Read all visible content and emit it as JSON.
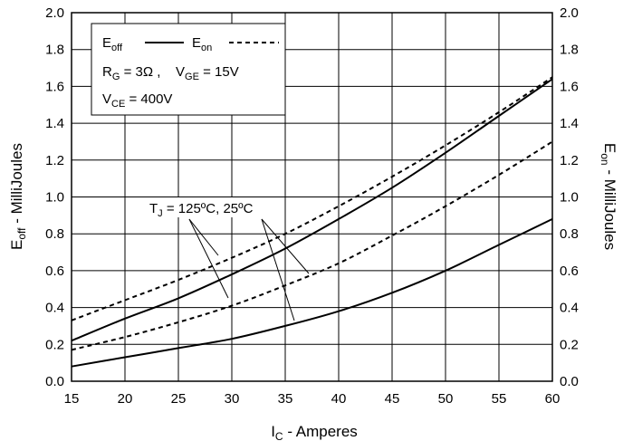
{
  "chart_data": {
    "type": "line",
    "xlabel": {
      "main": "I",
      "sub": "C",
      "rest": " - Amperes"
    },
    "ylabel_left": {
      "main": "E",
      "sub": "off",
      "rest": " - MilliJoules"
    },
    "ylabel_right": {
      "main": "E",
      "sub": "on",
      "rest": " - MilliJoules"
    },
    "xlim": [
      15,
      60
    ],
    "ylim": [
      0,
      2
    ],
    "xticks": [
      "15",
      "20",
      "25",
      "30",
      "35",
      "40",
      "45",
      "50",
      "55",
      "60"
    ],
    "yticks": [
      "0.0",
      "0.2",
      "0.4",
      "0.6",
      "0.8",
      "1.0",
      "1.2",
      "1.4",
      "1.6",
      "1.8",
      "2.0"
    ],
    "grid": true,
    "legend": {
      "placement": "top-left",
      "eoff": {
        "main": "E",
        "sub": "off"
      },
      "eon": {
        "main": "E",
        "sub": "on"
      },
      "rg": {
        "main": "R",
        "sub": "G",
        "rest": " = 3Ω ,"
      },
      "vge": {
        "main": "V",
        "sub": "GE",
        "rest": " = 15V"
      },
      "vce": {
        "main": "V",
        "sub": "CE",
        "rest": " = 400V"
      }
    },
    "annotation": {
      "main": "T",
      "sub": "J",
      "rest": " = 125ºC, 25ºC"
    },
    "series": [
      {
        "quantity": "Eon",
        "tj": "125ºC",
        "style": "dashed",
        "x": [
          15,
          20,
          25,
          30,
          35,
          40,
          45,
          50,
          55,
          60
        ],
        "y": [
          0.33,
          0.44,
          0.55,
          0.67,
          0.8,
          0.95,
          1.11,
          1.28,
          1.46,
          1.65
        ]
      },
      {
        "quantity": "Eoff",
        "tj": "125ºC",
        "style": "solid",
        "x": [
          15,
          20,
          25,
          30,
          35,
          40,
          45,
          50,
          55,
          60
        ],
        "y": [
          0.22,
          0.34,
          0.45,
          0.58,
          0.72,
          0.88,
          1.05,
          1.24,
          1.44,
          1.64
        ]
      },
      {
        "quantity": "Eon",
        "tj": "25ºC",
        "style": "dashed",
        "x": [
          15,
          20,
          25,
          30,
          35,
          40,
          45,
          50,
          55,
          60
        ],
        "y": [
          0.17,
          0.24,
          0.32,
          0.41,
          0.52,
          0.64,
          0.79,
          0.95,
          1.12,
          1.3
        ]
      },
      {
        "quantity": "Eoff",
        "tj": "25ºC",
        "style": "solid",
        "x": [
          15,
          20,
          25,
          30,
          35,
          40,
          45,
          50,
          55,
          60
        ],
        "y": [
          0.08,
          0.13,
          0.18,
          0.23,
          0.3,
          0.38,
          0.48,
          0.6,
          0.74,
          0.88
        ]
      }
    ]
  }
}
